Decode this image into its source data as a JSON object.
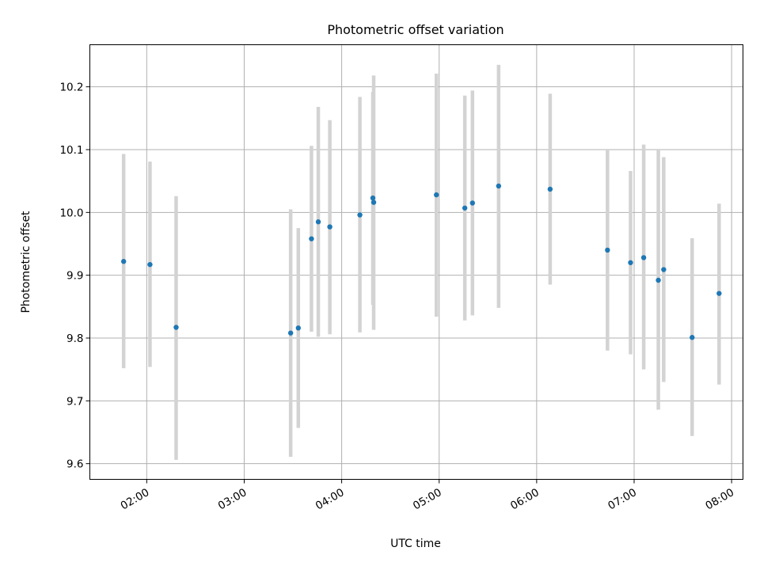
{
  "chart_data": {
    "type": "scatter",
    "title": "Photometric offset variation",
    "xlabel": "UTC time",
    "ylabel": "Photometric offset",
    "grid": true,
    "xlim": [
      85.0,
      487.0
    ],
    "ylim": [
      9.575,
      10.267
    ],
    "x_unit": "minutes after 00:00 UTC",
    "xticks": [
      {
        "value": 120,
        "label": "02:00"
      },
      {
        "value": 180,
        "label": "03:00"
      },
      {
        "value": 240,
        "label": "04:00"
      },
      {
        "value": 300,
        "label": "05:00"
      },
      {
        "value": 360,
        "label": "06:00"
      },
      {
        "value": 420,
        "label": "07:00"
      },
      {
        "value": 480,
        "label": "08:00"
      }
    ],
    "yticks": [
      {
        "value": 9.6,
        "label": "9.6"
      },
      {
        "value": 9.7,
        "label": "9.7"
      },
      {
        "value": 9.8,
        "label": "9.8"
      },
      {
        "value": 9.9,
        "label": "9.9"
      },
      {
        "value": 10.0,
        "label": "10.0"
      },
      {
        "value": 10.1,
        "label": "10.1"
      },
      {
        "value": 10.2,
        "label": "10.2"
      }
    ],
    "colors": {
      "point": "#1f77b4",
      "errorbar": "#d3d3d3"
    },
    "series": [
      {
        "name": "offset",
        "points": [
          {
            "x": 105.8,
            "y": 9.922,
            "ylo": 9.752,
            "yhi": 10.093
          },
          {
            "x": 122.0,
            "y": 9.917,
            "ylo": 9.754,
            "yhi": 10.081
          },
          {
            "x": 138.1,
            "y": 9.817,
            "ylo": 9.606,
            "yhi": 10.026
          },
          {
            "x": 208.6,
            "y": 9.808,
            "ylo": 9.611,
            "yhi": 10.005
          },
          {
            "x": 213.3,
            "y": 9.816,
            "ylo": 9.657,
            "yhi": 9.975
          },
          {
            "x": 221.4,
            "y": 9.958,
            "ylo": 9.81,
            "yhi": 10.106
          },
          {
            "x": 225.6,
            "y": 9.985,
            "ylo": 9.802,
            "yhi": 10.168
          },
          {
            "x": 232.7,
            "y": 9.977,
            "ylo": 9.806,
            "yhi": 10.147
          },
          {
            "x": 251.2,
            "y": 9.996,
            "ylo": 9.809,
            "yhi": 10.184
          },
          {
            "x": 259.2,
            "y": 10.023,
            "ylo": 9.853,
            "yhi": 10.192
          },
          {
            "x": 259.7,
            "y": 10.016,
            "ylo": 9.813,
            "yhi": 10.218
          },
          {
            "x": 298.3,
            "y": 10.028,
            "ylo": 9.834,
            "yhi": 10.221
          },
          {
            "x": 315.8,
            "y": 10.007,
            "ylo": 9.828,
            "yhi": 10.186
          },
          {
            "x": 320.5,
            "y": 10.015,
            "ylo": 9.836,
            "yhi": 10.194
          },
          {
            "x": 336.6,
            "y": 10.042,
            "ylo": 9.848,
            "yhi": 10.235
          },
          {
            "x": 368.3,
            "y": 10.037,
            "ylo": 9.885,
            "yhi": 10.189
          },
          {
            "x": 403.6,
            "y": 9.94,
            "ylo": 9.78,
            "yhi": 10.1
          },
          {
            "x": 417.8,
            "y": 9.92,
            "ylo": 9.774,
            "yhi": 10.066
          },
          {
            "x": 425.9,
            "y": 9.928,
            "ylo": 9.75,
            "yhi": 10.108
          },
          {
            "x": 434.9,
            "y": 9.892,
            "ylo": 9.686,
            "yhi": 10.1
          },
          {
            "x": 438.2,
            "y": 9.909,
            "ylo": 9.73,
            "yhi": 10.088
          },
          {
            "x": 455.7,
            "y": 9.801,
            "ylo": 9.644,
            "yhi": 9.959
          },
          {
            "x": 472.3,
            "y": 9.871,
            "ylo": 9.726,
            "yhi": 10.014
          }
        ]
      }
    ]
  }
}
